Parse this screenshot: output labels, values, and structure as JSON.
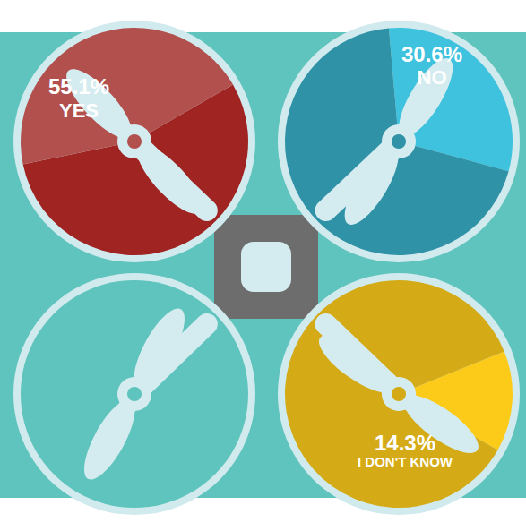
{
  "chart_data": {
    "type": "pie",
    "categories": [
      "YES",
      "NO",
      "I DON'T KNOW"
    ],
    "values": [
      55.1,
      30.6,
      14.3
    ],
    "value_labels": [
      "55.1%",
      "30.6%",
      "14.3%"
    ],
    "colors": [
      "#9f2422",
      "#3fc2de",
      "#fccb1a"
    ],
    "data_labels": true
  }
}
